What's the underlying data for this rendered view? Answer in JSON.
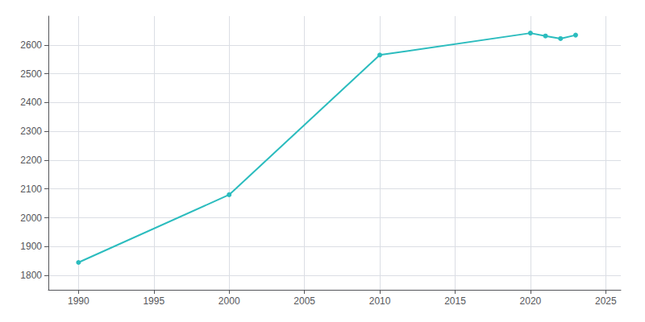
{
  "chart_data": {
    "type": "line",
    "x": [
      1990,
      2000,
      2010,
      2020,
      2021,
      2022,
      2023
    ],
    "values": [
      1845,
      2080,
      2565,
      2641,
      2631,
      2622,
      2634
    ],
    "color": "#2bbcbe",
    "marker": "circle",
    "xlim": [
      1988,
      2026
    ],
    "ylim": [
      1750,
      2700
    ],
    "xticks": [
      1990,
      1995,
      2000,
      2005,
      2010,
      2015,
      2020,
      2025
    ],
    "yticks": [
      1800,
      1900,
      2000,
      2100,
      2200,
      2300,
      2400,
      2500,
      2600
    ],
    "grid": true
  }
}
